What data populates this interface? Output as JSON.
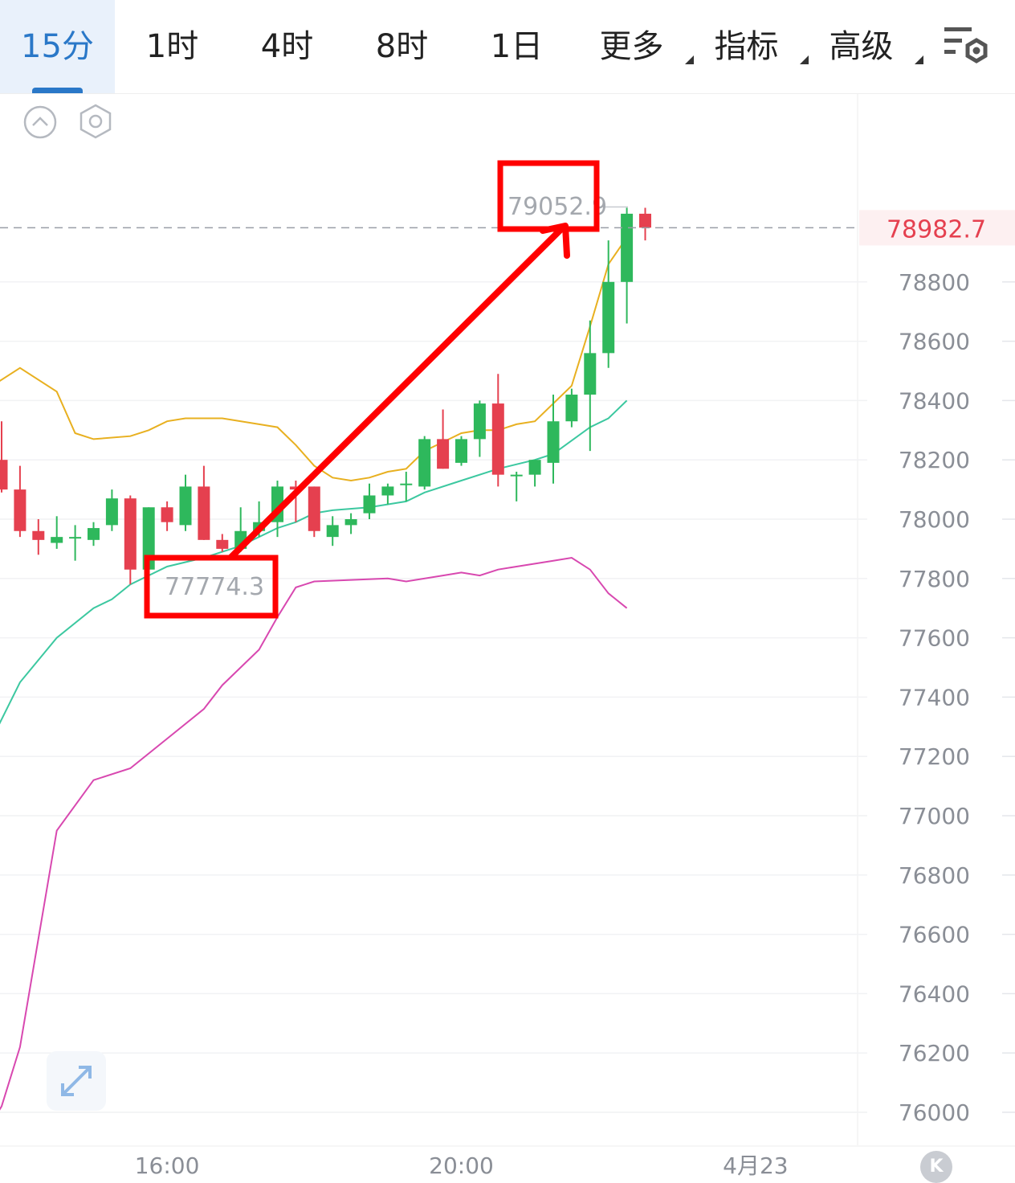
{
  "tabs": [
    {
      "label": "15分",
      "active": true
    },
    {
      "label": "1时"
    },
    {
      "label": "4时"
    },
    {
      "label": "8时"
    },
    {
      "label": "1日"
    },
    {
      "label": "更多",
      "dropdown": true
    },
    {
      "label": "指标",
      "dropdown": true
    },
    {
      "label": "高级",
      "dropdown": true
    }
  ],
  "icons": {
    "settings": "chart-settings-icon",
    "collapse": "chevron-up-circle-icon",
    "indicator": "hexagon-settings-icon",
    "expand": "expand-arrows-icon",
    "kline_badge": "k-logo-icon"
  },
  "badge_label": "K",
  "colors": {
    "up": "#2eb85c",
    "down": "#e5404f",
    "ma_fast": "#e8b020",
    "ma_slow": "#3cc8a0",
    "band_lower": "#d848b0",
    "annotation": "#ff0000",
    "current_price": "#e5404f",
    "accent": "#2a78c8"
  },
  "chart_data": {
    "type": "candlestick",
    "timeframe": "15分",
    "ylim": [
      75900,
      79300
    ],
    "y_ticks": [
      78800,
      78600,
      78400,
      78200,
      78000,
      77800,
      77600,
      77400,
      77200,
      77000,
      76800,
      76600,
      76400,
      76200,
      76000
    ],
    "x_ticks": [
      {
        "label": "16:00",
        "index": 9
      },
      {
        "label": "20:00",
        "index": 25
      },
      {
        "label": "4月23",
        "index": 41
      }
    ],
    "current_price": {
      "value": 78982.7,
      "label": "78982.7"
    },
    "annotations": [
      {
        "label": "77774.3",
        "value": 77774.3,
        "index": 7
      },
      {
        "label": "79052.9",
        "value": 79052.9,
        "index": 33
      }
    ],
    "candles": [
      {
        "o": 78200,
        "h": 78330,
        "l": 78090,
        "c": 78100
      },
      {
        "o": 78100,
        "h": 78180,
        "l": 77940,
        "c": 77960
      },
      {
        "o": 77960,
        "h": 78000,
        "l": 77880,
        "c": 77930
      },
      {
        "o": 77920,
        "h": 78010,
        "l": 77900,
        "c": 77940
      },
      {
        "o": 77940,
        "h": 77980,
        "l": 77860,
        "c": 77940
      },
      {
        "o": 77930,
        "h": 77990,
        "l": 77910,
        "c": 77970
      },
      {
        "o": 77980,
        "h": 78100,
        "l": 77960,
        "c": 78070
      },
      {
        "o": 78070,
        "h": 78080,
        "l": 77780,
        "c": 77830
      },
      {
        "o": 77830,
        "h": 78040,
        "l": 77820,
        "c": 78040
      },
      {
        "o": 78040,
        "h": 78060,
        "l": 77960,
        "c": 77990
      },
      {
        "o": 77980,
        "h": 78150,
        "l": 77960,
        "c": 78110
      },
      {
        "o": 78110,
        "h": 78180,
        "l": 77930,
        "c": 77930
      },
      {
        "o": 77930,
        "h": 77950,
        "l": 77890,
        "c": 77900
      },
      {
        "o": 77900,
        "h": 78040,
        "l": 77890,
        "c": 77960
      },
      {
        "o": 77960,
        "h": 78060,
        "l": 77940,
        "c": 77990
      },
      {
        "o": 77990,
        "h": 78130,
        "l": 77940,
        "c": 78110
      },
      {
        "o": 78110,
        "h": 78130,
        "l": 77990,
        "c": 78100
      },
      {
        "o": 78110,
        "h": 78110,
        "l": 77940,
        "c": 77960
      },
      {
        "o": 77940,
        "h": 78010,
        "l": 77910,
        "c": 77980
      },
      {
        "o": 77980,
        "h": 78020,
        "l": 77950,
        "c": 78000
      },
      {
        "o": 78020,
        "h": 78120,
        "l": 78000,
        "c": 78080
      },
      {
        "o": 78080,
        "h": 78120,
        "l": 78050,
        "c": 78110
      },
      {
        "o": 78120,
        "h": 78160,
        "l": 78060,
        "c": 78120
      },
      {
        "o": 78110,
        "h": 78280,
        "l": 78100,
        "c": 78270
      },
      {
        "o": 78270,
        "h": 78370,
        "l": 78170,
        "c": 78170
      },
      {
        "o": 78190,
        "h": 78280,
        "l": 78180,
        "c": 78270
      },
      {
        "o": 78270,
        "h": 78400,
        "l": 78210,
        "c": 78390
      },
      {
        "o": 78390,
        "h": 78490,
        "l": 78110,
        "c": 78150
      },
      {
        "o": 78150,
        "h": 78160,
        "l": 78060,
        "c": 78150
      },
      {
        "o": 78150,
        "h": 78200,
        "l": 78110,
        "c": 78200
      },
      {
        "o": 78190,
        "h": 78420,
        "l": 78120,
        "c": 78330
      },
      {
        "o": 78330,
        "h": 78440,
        "l": 78310,
        "c": 78420
      },
      {
        "o": 78420,
        "h": 78670,
        "l": 78230,
        "c": 78560
      },
      {
        "o": 78560,
        "h": 78940,
        "l": 78510,
        "c": 78800
      },
      {
        "o": 78800,
        "h": 79050,
        "l": 78660,
        "c": 79030
      },
      {
        "o": 79030,
        "h": 79050,
        "l": 78940,
        "c": 78983
      }
    ],
    "series": [
      {
        "role": "upper-band",
        "color": "#e8b020",
        "points": [
          [
            -1,
            78430
          ],
          [
            1,
            78510
          ],
          [
            3,
            78430
          ],
          [
            4,
            78290
          ],
          [
            5,
            78270
          ],
          [
            7,
            78280
          ],
          [
            8,
            78300
          ],
          [
            9,
            78330
          ],
          [
            10,
            78340
          ],
          [
            12,
            78340
          ],
          [
            14,
            78320
          ],
          [
            15,
            78310
          ],
          [
            16,
            78250
          ],
          [
            17,
            78180
          ],
          [
            18,
            78140
          ],
          [
            19,
            78130
          ],
          [
            20,
            78140
          ],
          [
            21,
            78160
          ],
          [
            22,
            78170
          ],
          [
            23,
            78230
          ],
          [
            24,
            78260
          ],
          [
            25,
            78290
          ],
          [
            26,
            78300
          ],
          [
            27,
            78300
          ],
          [
            28,
            78320
          ],
          [
            29,
            78330
          ],
          [
            30,
            78390
          ],
          [
            31,
            78450
          ],
          [
            32,
            78650
          ],
          [
            33,
            78860
          ],
          [
            34,
            78950
          ]
        ]
      },
      {
        "role": "middle-band",
        "color": "#3cc8a0",
        "points": [
          [
            -1,
            77200
          ],
          [
            1,
            77450
          ],
          [
            3,
            77600
          ],
          [
            5,
            77700
          ],
          [
            6,
            77730
          ],
          [
            7,
            77780
          ],
          [
            9,
            77840
          ],
          [
            11,
            77870
          ],
          [
            13,
            77910
          ],
          [
            14,
            77940
          ],
          [
            15,
            77970
          ],
          [
            16,
            77990
          ],
          [
            17,
            78020
          ],
          [
            18,
            78030
          ],
          [
            20,
            78040
          ],
          [
            22,
            78060
          ],
          [
            23,
            78090
          ],
          [
            25,
            78130
          ],
          [
            27,
            78170
          ],
          [
            29,
            78200
          ],
          [
            30,
            78220
          ],
          [
            32,
            78310
          ],
          [
            33,
            78340
          ],
          [
            34,
            78400
          ]
        ]
      },
      {
        "role": "lower-band",
        "color": "#d848b0",
        "points": [
          [
            -1,
            75920
          ],
          [
            0,
            76020
          ],
          [
            1,
            76220
          ],
          [
            3,
            76950
          ],
          [
            5,
            77120
          ],
          [
            7,
            77160
          ],
          [
            9,
            77260
          ],
          [
            11,
            77360
          ],
          [
            12,
            77440
          ],
          [
            14,
            77560
          ],
          [
            15,
            77670
          ],
          [
            16,
            77770
          ],
          [
            17,
            77790
          ],
          [
            19,
            77795
          ],
          [
            21,
            77800
          ],
          [
            22,
            77790
          ],
          [
            24,
            77810
          ],
          [
            25,
            77820
          ],
          [
            26,
            77810
          ],
          [
            27,
            77830
          ],
          [
            28,
            77840
          ],
          [
            30,
            77860
          ],
          [
            31,
            77870
          ],
          [
            32,
            77830
          ],
          [
            33,
            77750
          ],
          [
            34,
            77700
          ]
        ]
      }
    ]
  }
}
